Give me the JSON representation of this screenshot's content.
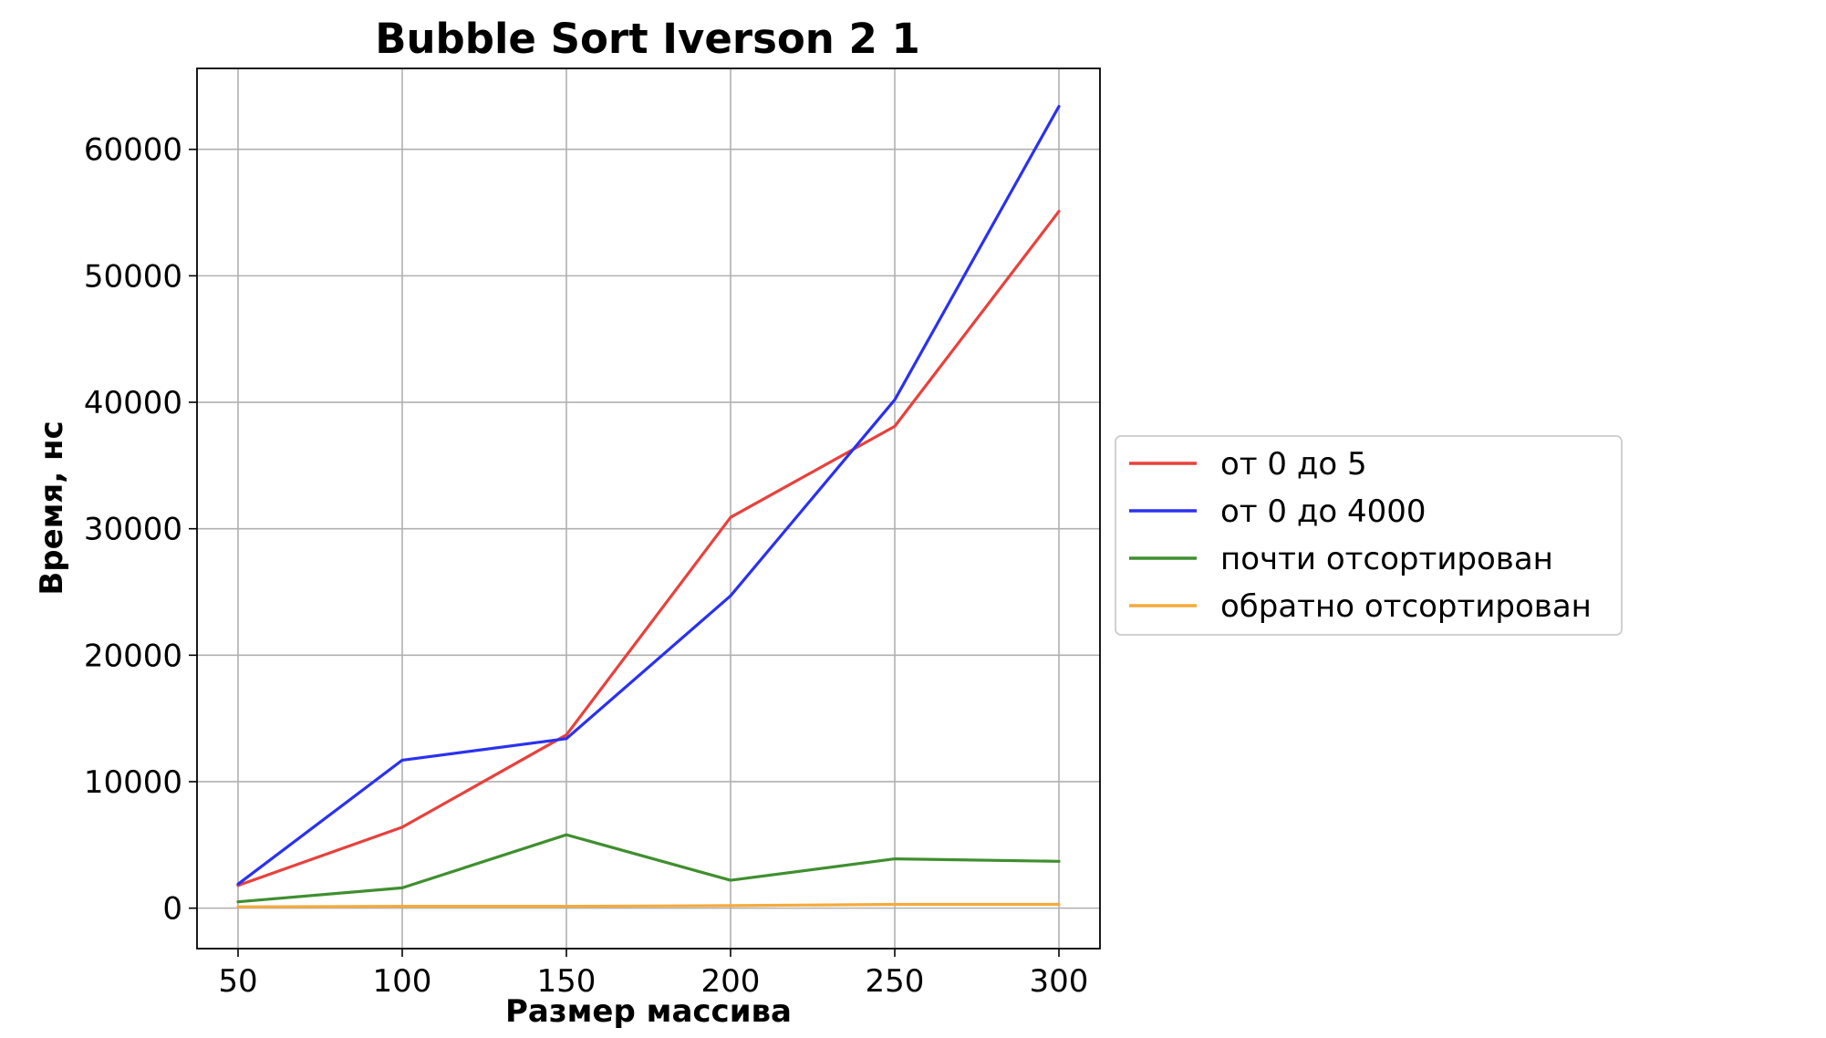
{
  "chart_data": {
    "type": "line",
    "title": "Bubble Sort Iverson 2 1",
    "xlabel": "Размер массива",
    "ylabel": "Время, нс",
    "x": [
      50,
      100,
      150,
      200,
      250,
      300
    ],
    "xticks": [
      50,
      100,
      150,
      200,
      250,
      300
    ],
    "yticks": [
      0,
      10000,
      20000,
      30000,
      40000,
      50000,
      60000
    ],
    "xlim": [
      37.5,
      312.5
    ],
    "ylim": [
      -3200,
      66400
    ],
    "grid": true,
    "legend_position": "right-outside",
    "series": [
      {
        "name": "от 0 до 5",
        "color": "#e8413c",
        "values": [
          1800,
          6400,
          13700,
          30900,
          38100,
          55100
        ]
      },
      {
        "name": "от 0 до 4000",
        "color": "#2a31f0",
        "values": [
          1900,
          11700,
          13400,
          24700,
          40200,
          63400
        ]
      },
      {
        "name": "почти отсортирован",
        "color": "#3f8f2f",
        "values": [
          500,
          1600,
          5800,
          2200,
          3900,
          3700
        ]
      },
      {
        "name": "обратно отсортирован",
        "color": "#f5aa3c",
        "values": [
          100,
          150,
          150,
          200,
          300,
          300
        ]
      }
    ]
  }
}
